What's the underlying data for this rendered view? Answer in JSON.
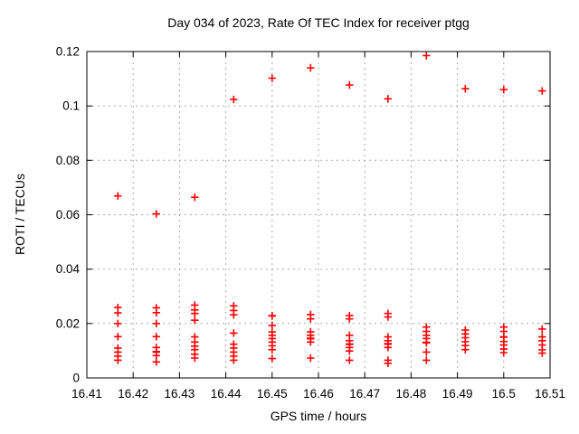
{
  "chart_data": {
    "type": "scatter",
    "title": "Day 034 of 2023, Rate Of TEC Index for receiver ptgg",
    "xlabel": "GPS time / hours",
    "ylabel": "ROTI / TECUs",
    "xlim": [
      16.41,
      16.51
    ],
    "ylim": [
      0,
      0.12
    ],
    "grid": true,
    "legend": "none",
    "marker": "plus",
    "marker_color": "#ff0000",
    "grid_color": "#a8a8a8",
    "border_color": "#000000",
    "xticks": {
      "values": [
        16.41,
        16.42,
        16.43,
        16.44,
        16.45,
        16.46,
        16.47,
        16.48,
        16.49,
        16.5,
        16.51
      ],
      "labels": [
        "16.41",
        "16.42",
        "16.43",
        "16.44",
        "16.45",
        "16.46",
        "16.47",
        "16.48",
        "16.49",
        "16.5",
        "16.51"
      ]
    },
    "yticks": {
      "values": [
        0,
        0.02,
        0.04,
        0.06,
        0.08,
        0.1,
        0.12
      ],
      "labels": [
        "0",
        "0.02",
        "0.04",
        "0.06",
        "0.08",
        "0.1",
        "0.12"
      ]
    },
    "points": [
      [
        16.4167,
        0.0669
      ],
      [
        16.4167,
        0.0259
      ],
      [
        16.4167,
        0.0239
      ],
      [
        16.4167,
        0.02
      ],
      [
        16.4167,
        0.0152
      ],
      [
        16.4167,
        0.011
      ],
      [
        16.4167,
        0.0095
      ],
      [
        16.4167,
        0.008
      ],
      [
        16.4167,
        0.0065
      ],
      [
        16.425,
        0.0603
      ],
      [
        16.425,
        0.0258
      ],
      [
        16.425,
        0.024
      ],
      [
        16.425,
        0.02
      ],
      [
        16.425,
        0.0152
      ],
      [
        16.425,
        0.0112
      ],
      [
        16.425,
        0.0097
      ],
      [
        16.425,
        0.0095
      ],
      [
        16.425,
        0.0082
      ],
      [
        16.425,
        0.0059
      ],
      [
        16.4333,
        0.0664
      ],
      [
        16.4333,
        0.0268
      ],
      [
        16.4333,
        0.025
      ],
      [
        16.4333,
        0.0237
      ],
      [
        16.4333,
        0.0212
      ],
      [
        16.4333,
        0.0151
      ],
      [
        16.4333,
        0.0132
      ],
      [
        16.4333,
        0.0117
      ],
      [
        16.4333,
        0.0104
      ],
      [
        16.4333,
        0.0087
      ],
      [
        16.4333,
        0.0073
      ],
      [
        16.4417,
        0.1024
      ],
      [
        16.4417,
        0.0265
      ],
      [
        16.4417,
        0.0248
      ],
      [
        16.4417,
        0.0232
      ],
      [
        16.4417,
        0.0165
      ],
      [
        16.4417,
        0.0124
      ],
      [
        16.4417,
        0.011
      ],
      [
        16.4417,
        0.0095
      ],
      [
        16.4417,
        0.008
      ],
      [
        16.4417,
        0.0065
      ],
      [
        16.45,
        0.1102
      ],
      [
        16.45,
        0.0229
      ],
      [
        16.45,
        0.0228
      ],
      [
        16.45,
        0.0193
      ],
      [
        16.45,
        0.0169
      ],
      [
        16.45,
        0.0157
      ],
      [
        16.45,
        0.0145
      ],
      [
        16.45,
        0.0132
      ],
      [
        16.45,
        0.0118
      ],
      [
        16.45,
        0.0104
      ],
      [
        16.45,
        0.0071
      ],
      [
        16.4583,
        0.114
      ],
      [
        16.4583,
        0.0233
      ],
      [
        16.4583,
        0.0217
      ],
      [
        16.4583,
        0.017
      ],
      [
        16.4583,
        0.0157
      ],
      [
        16.4583,
        0.0146
      ],
      [
        16.4583,
        0.0144
      ],
      [
        16.4583,
        0.0132
      ],
      [
        16.4583,
        0.0073
      ],
      [
        16.4667,
        0.1077
      ],
      [
        16.4667,
        0.0229
      ],
      [
        16.4667,
        0.0217
      ],
      [
        16.4667,
        0.0157
      ],
      [
        16.4667,
        0.0137
      ],
      [
        16.4667,
        0.0125
      ],
      [
        16.4667,
        0.0123
      ],
      [
        16.4667,
        0.0112
      ],
      [
        16.4667,
        0.0099
      ],
      [
        16.4667,
        0.0065
      ],
      [
        16.475,
        0.1026
      ],
      [
        16.475,
        0.0237
      ],
      [
        16.475,
        0.0224
      ],
      [
        16.475,
        0.0151
      ],
      [
        16.475,
        0.0137
      ],
      [
        16.475,
        0.0126
      ],
      [
        16.475,
        0.0124
      ],
      [
        16.475,
        0.0112
      ],
      [
        16.475,
        0.0065
      ],
      [
        16.475,
        0.0054
      ],
      [
        16.4833,
        0.1185
      ],
      [
        16.4833,
        0.0187
      ],
      [
        16.4833,
        0.0171
      ],
      [
        16.4833,
        0.0157
      ],
      [
        16.4833,
        0.0145
      ],
      [
        16.4833,
        0.0131
      ],
      [
        16.4833,
        0.0129
      ],
      [
        16.4833,
        0.0095
      ],
      [
        16.4833,
        0.0065
      ],
      [
        16.4917,
        0.1063
      ],
      [
        16.4917,
        0.0176
      ],
      [
        16.4917,
        0.0162
      ],
      [
        16.4917,
        0.0148
      ],
      [
        16.4917,
        0.0133
      ],
      [
        16.4917,
        0.0119
      ],
      [
        16.4917,
        0.0104
      ],
      [
        16.5,
        0.106
      ],
      [
        16.5,
        0.0187
      ],
      [
        16.5,
        0.0171
      ],
      [
        16.5,
        0.0151
      ],
      [
        16.5,
        0.015
      ],
      [
        16.5,
        0.0134
      ],
      [
        16.5,
        0.0121
      ],
      [
        16.5,
        0.0106
      ],
      [
        16.5,
        0.0093
      ],
      [
        16.5083,
        0.1055
      ],
      [
        16.5083,
        0.018
      ],
      [
        16.5083,
        0.0151
      ],
      [
        16.5083,
        0.0137
      ],
      [
        16.5083,
        0.0121
      ],
      [
        16.5083,
        0.0103
      ],
      [
        16.5083,
        0.0091
      ]
    ]
  }
}
